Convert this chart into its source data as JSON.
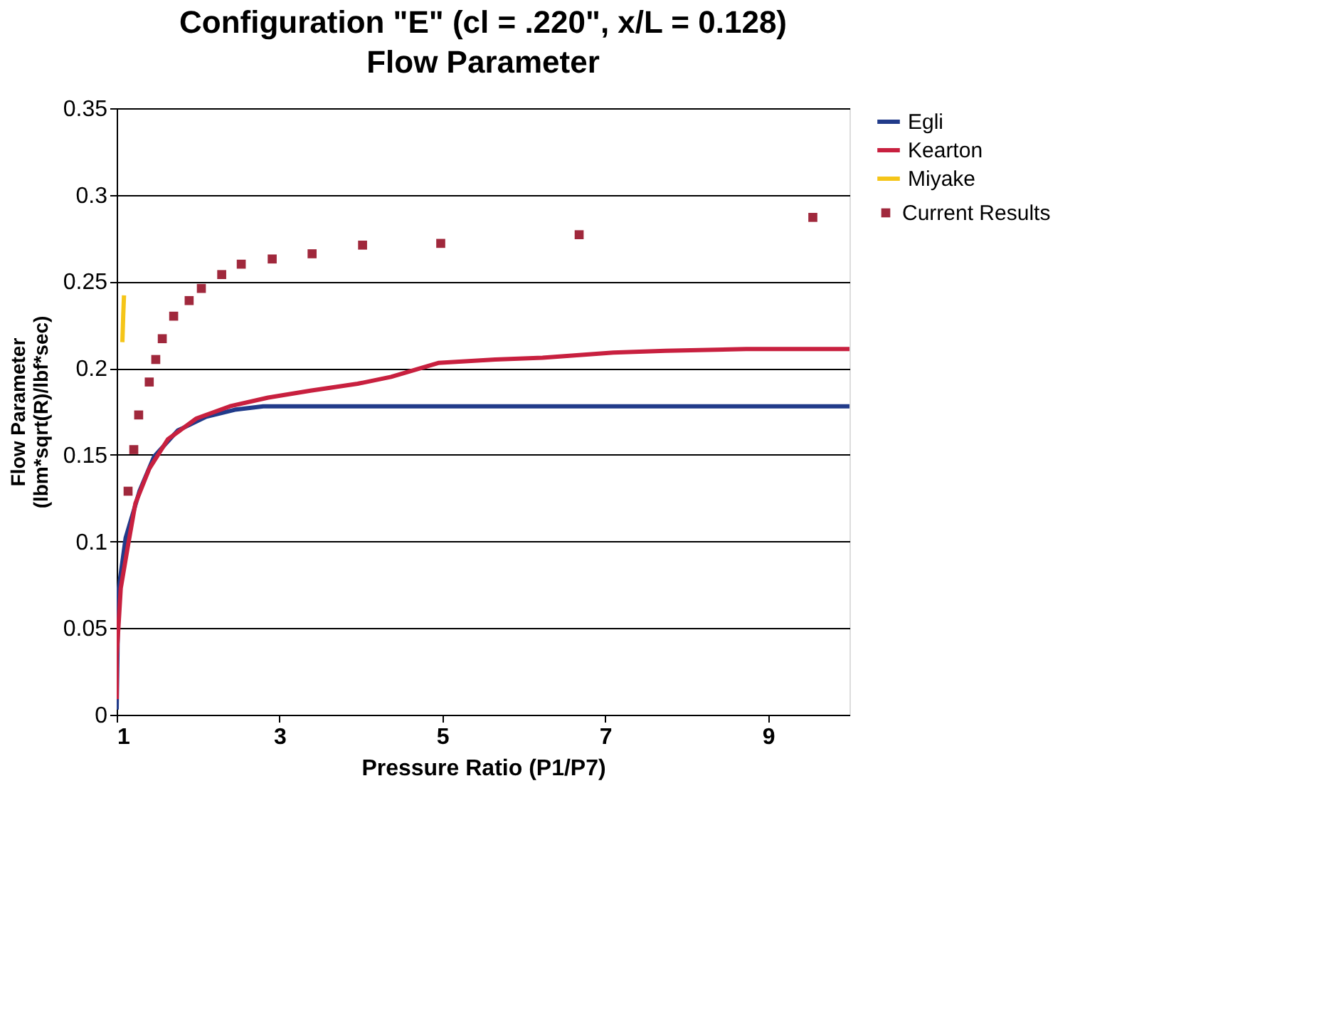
{
  "chart_data": {
    "type": "line",
    "title": "Configuration \"E\" (cl = .220\", x/L = 0.128)",
    "subtitle": "Flow Parameter",
    "xlabel": "Pressure Ratio (P1/P7)",
    "ylabel": "Flow Parameter\n(lbm*sqrt(R)/lbf*sec)",
    "xlim": [
      1,
      10
    ],
    "xticks": [
      1,
      3,
      5,
      7,
      9
    ],
    "ylim": [
      0,
      0.35
    ],
    "yticks": [
      0,
      0.05,
      0.1,
      0.15,
      0.2,
      0.25,
      0.3,
      0.35
    ],
    "grid": "y",
    "legend": "right",
    "line_style": "solid",
    "series": [
      {
        "name": "Egli",
        "color": "#213b8a",
        "x": [
          1.0,
          1.02,
          1.11,
          1.28,
          1.46,
          1.75,
          2.1,
          2.45,
          2.8,
          10
        ],
        "values": [
          0.003,
          0.071,
          0.102,
          0.129,
          0.149,
          0.164,
          0.172,
          0.176,
          0.178,
          0.178
        ]
      },
      {
        "name": "Kearton",
        "color": "#c8203f",
        "x": [
          1.0,
          1.0,
          1.05,
          1.14,
          1.23,
          1.4,
          1.63,
          1.98,
          2.39,
          2.86,
          3.38,
          3.96,
          4.37,
          4.95,
          5.65,
          6.23,
          7.1,
          7.74,
          8.73,
          10
        ],
        "values": [
          0.009,
          0.034,
          0.073,
          0.098,
          0.122,
          0.142,
          0.159,
          0.171,
          0.178,
          0.183,
          0.187,
          0.191,
          0.195,
          0.203,
          0.205,
          0.206,
          0.209,
          0.21,
          0.211,
          0.211
        ]
      },
      {
        "name": "Miyake",
        "color": "#f5c518",
        "x": [
          1.07,
          1.08,
          1.09
        ],
        "values": [
          0.215,
          0.23,
          0.242
        ]
      },
      {
        "name": "Current Results",
        "type": "scatter",
        "marker": "square",
        "color": "#a0283c",
        "x": [
          1.14,
          1.21,
          1.27,
          1.4,
          1.48,
          1.56,
          1.7,
          1.89,
          2.04,
          2.29,
          2.53,
          2.91,
          3.4,
          4.02,
          4.98,
          6.68,
          9.55
        ],
        "values": [
          0.129,
          0.153,
          0.173,
          0.192,
          0.205,
          0.217,
          0.23,
          0.239,
          0.246,
          0.254,
          0.26,
          0.263,
          0.266,
          0.271,
          0.272,
          0.277,
          0.287
        ]
      }
    ]
  }
}
